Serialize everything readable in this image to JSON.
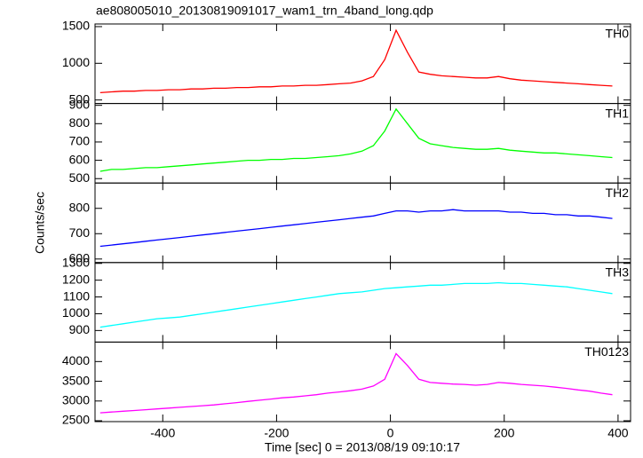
{
  "title": "ae808005010_20130819091017_wam1_trn_4band_long.qdp",
  "xlabel": "Time [sec] 0 = 2013/08/19 09:10:17",
  "ylabel": "Counts/sec",
  "chart_data": [
    {
      "type": "line",
      "label": "TH0",
      "color": "#ff0000",
      "x": [
        -510,
        -490,
        -470,
        -450,
        -430,
        -410,
        -390,
        -370,
        -350,
        -330,
        -310,
        -290,
        -270,
        -250,
        -230,
        -210,
        -190,
        -170,
        -150,
        -130,
        -110,
        -90,
        -70,
        -50,
        -30,
        -10,
        10,
        30,
        50,
        70,
        90,
        110,
        130,
        150,
        170,
        190,
        210,
        230,
        250,
        270,
        290,
        310,
        330,
        350,
        370,
        390
      ],
      "values": [
        600,
        610,
        620,
        620,
        630,
        630,
        640,
        640,
        650,
        650,
        660,
        660,
        670,
        670,
        680,
        680,
        690,
        690,
        700,
        700,
        710,
        720,
        730,
        760,
        820,
        1050,
        1450,
        1150,
        880,
        850,
        830,
        820,
        810,
        800,
        800,
        820,
        790,
        770,
        760,
        750,
        740,
        730,
        720,
        710,
        700,
        690
      ],
      "xlim": [
        -519,
        422
      ],
      "xticks": [
        -400,
        -200,
        0,
        200,
        400
      ],
      "ylim": [
        452,
        1536
      ],
      "yticks": [
        500,
        1000,
        1500
      ]
    },
    {
      "type": "line",
      "label": "TH1",
      "color": "#00ff00",
      "x": [
        -510,
        -490,
        -470,
        -450,
        -430,
        -410,
        -390,
        -370,
        -350,
        -330,
        -310,
        -290,
        -270,
        -250,
        -230,
        -210,
        -190,
        -170,
        -150,
        -130,
        -110,
        -90,
        -70,
        -50,
        -30,
        -10,
        10,
        30,
        50,
        70,
        90,
        110,
        130,
        150,
        170,
        190,
        210,
        230,
        250,
        270,
        290,
        310,
        330,
        350,
        370,
        390
      ],
      "values": [
        540,
        550,
        550,
        555,
        560,
        560,
        565,
        570,
        575,
        580,
        585,
        590,
        595,
        600,
        600,
        605,
        605,
        610,
        610,
        615,
        620,
        625,
        635,
        650,
        680,
        760,
        880,
        800,
        720,
        690,
        680,
        670,
        665,
        660,
        660,
        665,
        655,
        650,
        645,
        640,
        640,
        635,
        630,
        625,
        620,
        615
      ],
      "xlim": [
        -519,
        422
      ],
      "xticks": [
        -400,
        -200,
        0,
        200,
        400
      ],
      "ylim": [
        476,
        910
      ],
      "yticks": [
        500,
        600,
        700,
        800,
        900
      ]
    },
    {
      "type": "line",
      "label": "TH2",
      "color": "#0000ff",
      "x": [
        -510,
        -490,
        -470,
        -450,
        -430,
        -410,
        -390,
        -370,
        -350,
        -330,
        -310,
        -290,
        -270,
        -250,
        -230,
        -210,
        -190,
        -170,
        -150,
        -130,
        -110,
        -90,
        -70,
        -50,
        -30,
        -10,
        10,
        30,
        50,
        70,
        90,
        110,
        130,
        150,
        170,
        190,
        210,
        230,
        250,
        270,
        290,
        310,
        330,
        350,
        370,
        390
      ],
      "values": [
        650,
        655,
        660,
        665,
        670,
        675,
        680,
        685,
        690,
        695,
        700,
        705,
        710,
        715,
        720,
        725,
        730,
        735,
        740,
        745,
        750,
        755,
        760,
        765,
        770,
        780,
        790,
        790,
        785,
        790,
        790,
        795,
        790,
        790,
        790,
        790,
        785,
        785,
        780,
        780,
        775,
        775,
        770,
        770,
        765,
        760
      ],
      "xlim": [
        -519,
        422
      ],
      "xticks": [
        -400,
        -200,
        0,
        200,
        400
      ],
      "ylim": [
        586,
        900
      ],
      "yticks": [
        600,
        700,
        800
      ]
    },
    {
      "type": "line",
      "label": "TH3",
      "color": "#00ffff",
      "x": [
        -510,
        -490,
        -470,
        -450,
        -430,
        -410,
        -390,
        -370,
        -350,
        -330,
        -310,
        -290,
        -270,
        -250,
        -230,
        -210,
        -190,
        -170,
        -150,
        -130,
        -110,
        -90,
        -70,
        -50,
        -30,
        -10,
        10,
        30,
        50,
        70,
        90,
        110,
        130,
        150,
        170,
        190,
        210,
        230,
        250,
        270,
        290,
        310,
        330,
        350,
        370,
        390
      ],
      "values": [
        920,
        930,
        940,
        950,
        960,
        970,
        975,
        980,
        990,
        1000,
        1010,
        1020,
        1030,
        1040,
        1050,
        1060,
        1070,
        1080,
        1090,
        1100,
        1110,
        1120,
        1125,
        1130,
        1140,
        1150,
        1155,
        1160,
        1165,
        1170,
        1170,
        1175,
        1180,
        1180,
        1180,
        1185,
        1180,
        1180,
        1175,
        1170,
        1165,
        1160,
        1150,
        1140,
        1130,
        1120
      ],
      "xlim": [
        -519,
        422
      ],
      "xticks": [
        -400,
        -200,
        0,
        200,
        400
      ],
      "ylim": [
        831,
        1305
      ],
      "yticks": [
        900,
        1000,
        1100,
        1200,
        1300
      ]
    },
    {
      "type": "line",
      "label": "TH0123",
      "color": "#ff00ff",
      "x": [
        -510,
        -490,
        -470,
        -450,
        -430,
        -410,
        -390,
        -370,
        -350,
        -330,
        -310,
        -290,
        -270,
        -250,
        -230,
        -210,
        -190,
        -170,
        -150,
        -130,
        -110,
        -90,
        -70,
        -50,
        -30,
        -10,
        10,
        30,
        50,
        70,
        90,
        110,
        130,
        150,
        170,
        190,
        210,
        230,
        250,
        270,
        290,
        310,
        330,
        350,
        370,
        390
      ],
      "values": [
        2700,
        2720,
        2740,
        2760,
        2780,
        2800,
        2820,
        2840,
        2860,
        2880,
        2900,
        2930,
        2960,
        2990,
        3020,
        3050,
        3080,
        3100,
        3130,
        3160,
        3200,
        3230,
        3260,
        3300,
        3380,
        3550,
        4200,
        3900,
        3550,
        3470,
        3450,
        3430,
        3420,
        3400,
        3420,
        3470,
        3450,
        3420,
        3400,
        3380,
        3350,
        3320,
        3280,
        3250,
        3200,
        3160
      ],
      "xlim": [
        -519,
        422
      ],
      "xticks": [
        -400,
        -200,
        0,
        200,
        400
      ],
      "ylim": [
        2478,
        4493
      ],
      "yticks": [
        2500,
        3000,
        3500,
        4000
      ]
    }
  ]
}
